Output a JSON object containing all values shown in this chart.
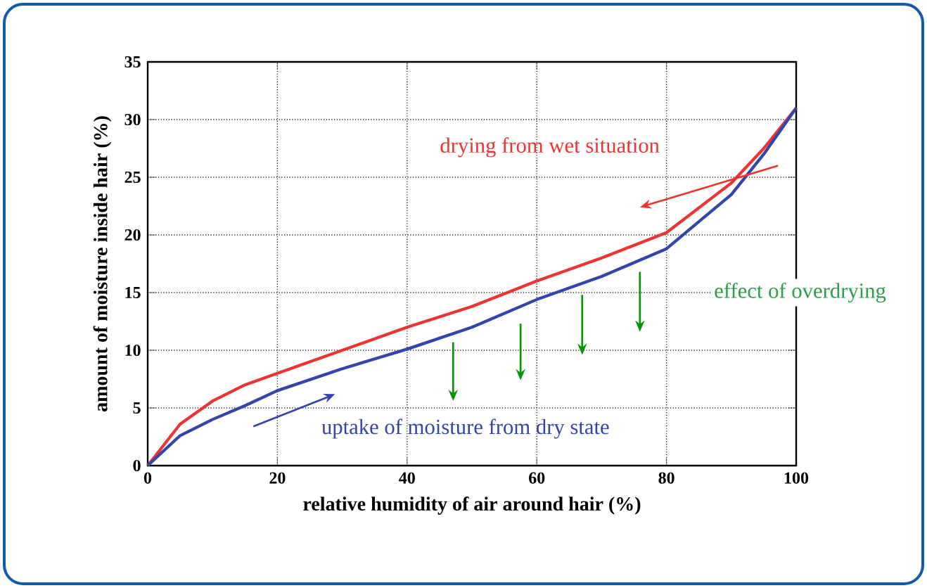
{
  "chart_data": {
    "type": "line",
    "xlabel": "relative humidity of air around hair (%)",
    "ylabel": "amount of moisture inside hair (%)",
    "xlim": [
      0,
      100
    ],
    "ylim": [
      0,
      35
    ],
    "xticks": [
      0,
      20,
      40,
      60,
      80,
      100
    ],
    "yticks": [
      0,
      5,
      10,
      15,
      20,
      25,
      30,
      35
    ],
    "grid": true,
    "marker": "none",
    "line_style": "solid",
    "series": [
      {
        "color": "#ee3333",
        "x": [
          0,
          5,
          10,
          15,
          20,
          30,
          40,
          50,
          60,
          70,
          80,
          90,
          95,
          100
        ],
        "values": [
          0,
          3.6,
          5.6,
          7,
          8,
          10,
          12,
          13.8,
          16,
          18,
          20.2,
          24.5,
          27.5,
          31
        ]
      },
      {
        "color": "#3344aa",
        "x": [
          0,
          5,
          10,
          15,
          20,
          30,
          40,
          50,
          60,
          70,
          80,
          90,
          95,
          100
        ],
        "values": [
          0,
          2.6,
          4,
          5.2,
          6.5,
          8.4,
          10.1,
          12,
          14.4,
          16.4,
          18.8,
          23.5,
          27,
          31
        ]
      }
    ],
    "annotations": [
      "drying from wet situation",
      "uptake of moisture from dry state",
      "effect of overdrying"
    ]
  }
}
